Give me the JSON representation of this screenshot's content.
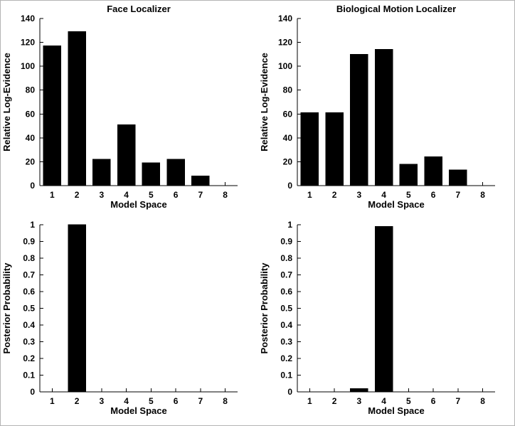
{
  "figure": {
    "background": "#ffffff",
    "bar_color": "#000000",
    "axis_color": "#000000",
    "text_color": "#000000"
  },
  "chart_data": [
    {
      "type": "bar",
      "title": "Face Localizer",
      "xlabel": "Model Space",
      "ylabel": "Relative Log-Evidence",
      "categories": [
        "1",
        "2",
        "3",
        "4",
        "5",
        "6",
        "7",
        "8"
      ],
      "values": [
        117,
        129,
        22,
        51,
        19,
        22,
        8,
        0
      ],
      "ylim": [
        0,
        140
      ],
      "ytick": 20,
      "ytick_labels": [
        "0",
        "20",
        "40",
        "60",
        "80",
        "100",
        "120",
        "140"
      ],
      "grid": false,
      "legend": null
    },
    {
      "type": "bar",
      "title": "Biological Motion Localizer",
      "xlabel": "Model Space",
      "ylabel": "Relative Log-Evidence",
      "categories": [
        "1",
        "2",
        "3",
        "4",
        "5",
        "6",
        "7",
        "8"
      ],
      "values": [
        61,
        61,
        110,
        114,
        18,
        24,
        13,
        0
      ],
      "ylim": [
        0,
        140
      ],
      "ytick": 20,
      "ytick_labels": [
        "0",
        "20",
        "40",
        "60",
        "80",
        "100",
        "120",
        "140"
      ],
      "grid": false,
      "legend": null
    },
    {
      "type": "bar",
      "title": "",
      "xlabel": "Model Space",
      "ylabel": "Posterior Probability",
      "categories": [
        "1",
        "2",
        "3",
        "4",
        "5",
        "6",
        "7",
        "8"
      ],
      "values": [
        0,
        1.0,
        0,
        0,
        0,
        0,
        0,
        0
      ],
      "ylim": [
        0,
        1
      ],
      "ytick": 0.1,
      "ytick_labels": [
        "0",
        "0.1",
        "0.2",
        "0.3",
        "0.4",
        "0.5",
        "0.6",
        "0.7",
        "0.8",
        "0.9",
        "1"
      ],
      "grid": false,
      "legend": null
    },
    {
      "type": "bar",
      "title": "",
      "xlabel": "Model Space",
      "ylabel": "Posterior Probability",
      "categories": [
        "1",
        "2",
        "3",
        "4",
        "5",
        "6",
        "7",
        "8"
      ],
      "values": [
        0,
        0,
        0.02,
        0.99,
        0,
        0,
        0,
        0
      ],
      "ylim": [
        0,
        1
      ],
      "ytick": 0.1,
      "ytick_labels": [
        "0",
        "0.1",
        "0.2",
        "0.3",
        "0.4",
        "0.5",
        "0.6",
        "0.7",
        "0.8",
        "0.9",
        "1"
      ],
      "grid": false,
      "legend": null
    }
  ]
}
